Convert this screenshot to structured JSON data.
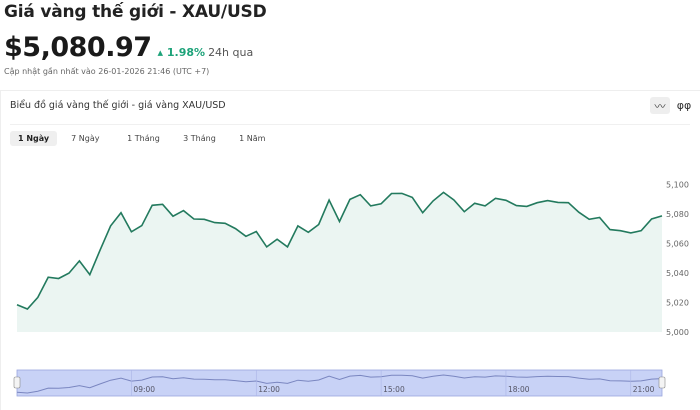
{
  "header": {
    "title": "Giá vàng thế giới - XAU/USD",
    "price": "$5,080.97",
    "change": "1.98%",
    "change_suffix": "24h qua",
    "updated": "Cập nhật gần nhất vào 26-01-2026 21:46 (UTC +7)"
  },
  "card": {
    "title": "Biểu đồ giá vàng thế giới - giá vàng XAU/USD",
    "icons": [
      "line-chart-icon",
      "candlestick-icon"
    ]
  },
  "tabs": [
    {
      "label": "1 Ngày",
      "active": true
    },
    {
      "label": "7 Ngày"
    },
    {
      "label": "1 Tháng"
    },
    {
      "label": "3 Tháng"
    },
    {
      "label": "1 Năm"
    }
  ],
  "colors": {
    "line": "#237a5e",
    "fill": "#ebf5f2",
    "up": "#1ea37a",
    "navigator": "#c8d2f6"
  },
  "chart_data": {
    "type": "area",
    "ylim": [
      5000,
      5100
    ],
    "yticks": [
      "5,000",
      "5,020",
      "5,040",
      "5,060",
      "5,080",
      "5,100"
    ],
    "navigator_ticks": [
      "09:00",
      "12:00",
      "15:00",
      "18:00",
      "21:00"
    ],
    "x_start": "06:15",
    "x_step_minutes": 15,
    "values": [
      5018.5,
      5015.6,
      5023.5,
      5037.2,
      5036.3,
      5040,
      5048.3,
      5039,
      5055.8,
      5072,
      5081,
      5068,
      5072.2,
      5086,
      5086.7,
      5078.6,
      5082.4,
      5076.7,
      5076.5,
      5074.3,
      5073.8,
      5070.2,
      5065,
      5068.2,
      5057.8,
      5063,
      5057.8,
      5072,
      5067.7,
      5073,
      5089.6,
      5075,
      5090,
      5093.2,
      5085.6,
      5087,
      5094,
      5094.1,
      5091.4,
      5081,
      5089,
      5094.8,
      5089.6,
      5081.7,
      5087.4,
      5085.6,
      5090.7,
      5089.4,
      5085.8,
      5085.3,
      5087.8,
      5089.2,
      5088,
      5087.8,
      5081.3,
      5076.5,
      5077.7,
      5069.5,
      5068.8,
      5067.3,
      5068.8,
      5076.7,
      5078.8
    ]
  }
}
